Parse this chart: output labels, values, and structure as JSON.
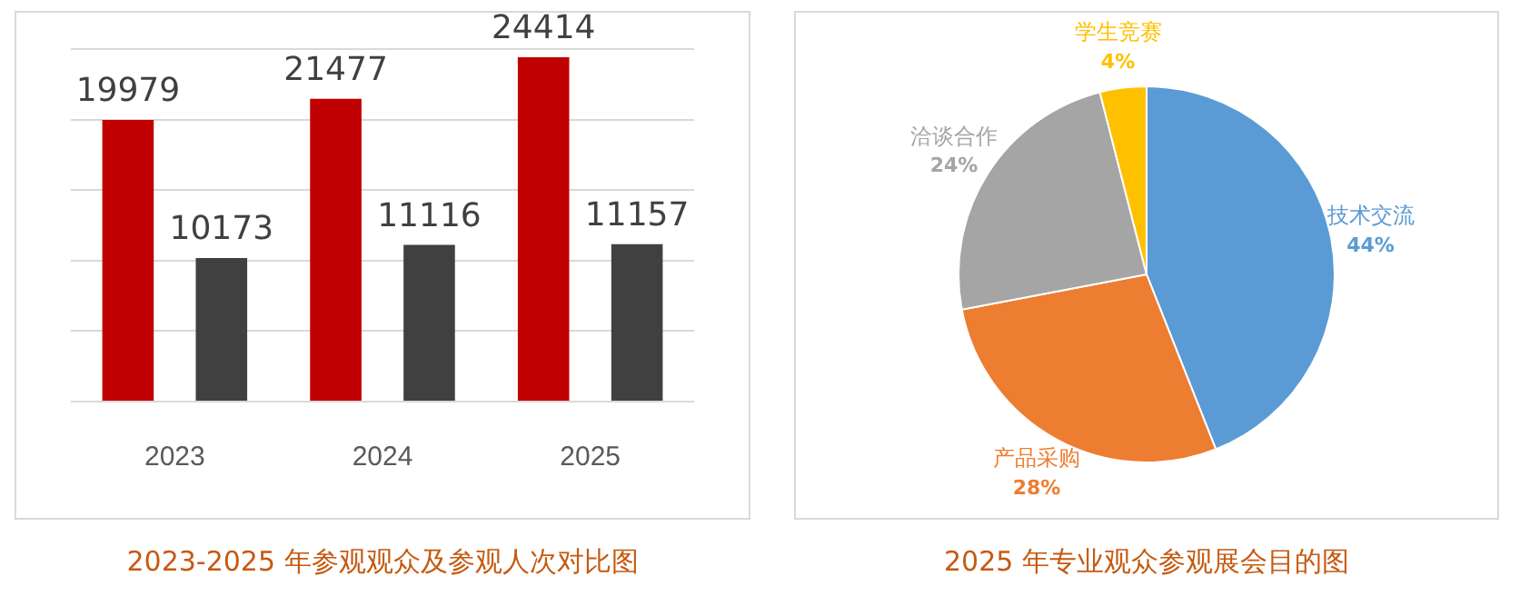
{
  "chart_data": [
    {
      "type": "bar",
      "title": "2023-2025 年参观观众及参观人次对比图",
      "categories": [
        "2023",
        "2024",
        "2025"
      ],
      "series": [
        {
          "color": "#c00000",
          "values": [
            19979,
            21477,
            24414
          ]
        },
        {
          "color": "#404040",
          "values": [
            10173,
            11116,
            11157
          ]
        }
      ],
      "ylim": [
        0,
        25000
      ],
      "yticks": [
        {
          "value": 0,
          "label": null
        },
        {
          "value": 5000,
          "label": null
        },
        {
          "value": 10000,
          "label": null
        },
        {
          "value": 15000,
          "label": null
        },
        {
          "value": 20000,
          "label": null
        },
        {
          "value": 25000,
          "label": null
        }
      ],
      "tick_labels": "x",
      "grid": "y",
      "legend": false,
      "data_labels": true
    },
    {
      "type": "pie",
      "title": "2025 年专业观众参观展会目的图",
      "categories": [
        "技术交流",
        "产品采购",
        "洽谈合作",
        "学生竞赛"
      ],
      "values": [
        44,
        28,
        24,
        4
      ],
      "colors": [
        "#5b9bd5",
        "#ed7d31",
        "#a5a5a5",
        "#ffc000"
      ],
      "value_labels": [
        "44%",
        "28%",
        "24%",
        "4%"
      ],
      "legend": false
    }
  ]
}
